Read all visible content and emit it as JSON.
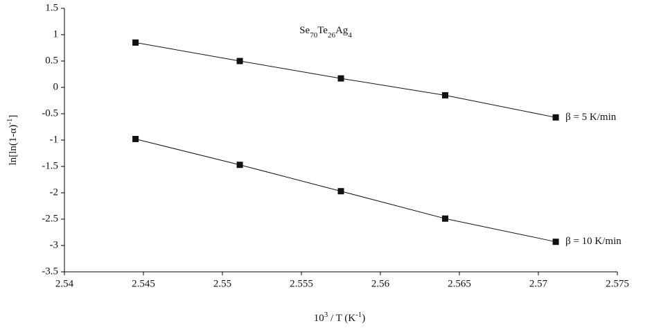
{
  "chart_data": {
    "type": "scatter",
    "title": [
      {
        "text": "Se"
      },
      {
        "text": "70",
        "script": "sub"
      },
      {
        "text": "Te"
      },
      {
        "text": "26",
        "script": "sub"
      },
      {
        "text": "Ag"
      },
      {
        "text": "4",
        "script": "sub"
      }
    ],
    "x_label": [
      {
        "text": "10"
      },
      {
        "text": "3",
        "script": "super"
      },
      {
        "text": " / T (K"
      },
      {
        "text": "-1",
        "script": "super"
      },
      {
        "text": ")"
      }
    ],
    "y_label": [
      {
        "text": "ln[ln(1-α)"
      },
      {
        "text": "-1",
        "script": "super"
      },
      {
        "text": "]"
      }
    ],
    "xlim": [
      2.54,
      2.575
    ],
    "xticks": [
      2.54,
      2.545,
      2.55,
      2.555,
      2.56,
      2.565,
      2.57,
      2.575
    ],
    "ylim": [
      -3.5,
      1.5
    ],
    "yticks": [
      1.5,
      1,
      0.5,
      0,
      -0.5,
      -1,
      -1.5,
      -2,
      -2.5,
      -3,
      -3.5
    ],
    "grid": false,
    "series": [
      {
        "name": "β = 5 K/min",
        "color": "#111111",
        "x": [
          2.5445,
          2.5511,
          2.5575,
          2.5641,
          2.5711
        ],
        "values": [
          0.85,
          0.5,
          0.17,
          -0.15,
          -0.57
        ]
      },
      {
        "name": "β = 10 K/min",
        "color": "#111111",
        "x": [
          2.5445,
          2.5511,
          2.5575,
          2.5641,
          2.5711
        ],
        "values": [
          -0.98,
          -1.47,
          -1.97,
          -2.49,
          -2.93
        ]
      }
    ]
  }
}
